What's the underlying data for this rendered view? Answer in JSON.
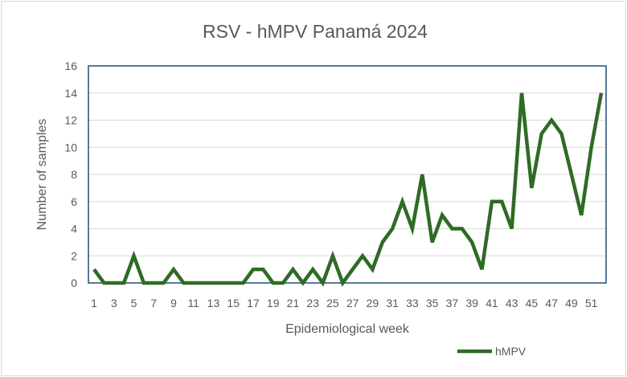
{
  "chart_data": {
    "type": "line",
    "title": "RSV - hMPV Panamá 2024",
    "xlabel": "Epidemiological week",
    "ylabel": "Number of samples",
    "ylim": [
      0,
      16
    ],
    "yticks": [
      "0",
      "2",
      "4",
      "6",
      "8",
      "10",
      "12",
      "14",
      "16"
    ],
    "x": [
      1,
      2,
      3,
      4,
      5,
      6,
      7,
      8,
      9,
      10,
      11,
      12,
      13,
      14,
      15,
      16,
      17,
      18,
      19,
      20,
      21,
      22,
      23,
      24,
      25,
      26,
      27,
      28,
      29,
      30,
      31,
      32,
      33,
      34,
      35,
      36,
      37,
      38,
      39,
      40,
      41,
      42,
      43,
      44,
      45,
      46,
      47,
      48,
      49,
      50,
      51,
      52
    ],
    "xtick_labels": [
      "1",
      "3",
      "5",
      "7",
      "9",
      "11",
      "13",
      "15",
      "17",
      "19",
      "21",
      "23",
      "25",
      "27",
      "29",
      "31",
      "33",
      "35",
      "37",
      "39",
      "41",
      "43",
      "45",
      "47",
      "49",
      "51"
    ],
    "series": [
      {
        "name": "hMPV",
        "color": "#2e6b24",
        "values": [
          1,
          0,
          0,
          0,
          2,
          0,
          0,
          0,
          1,
          0,
          0,
          0,
          0,
          0,
          0,
          0,
          1,
          1,
          0,
          0,
          1,
          0,
          1,
          0,
          2,
          0,
          1,
          2,
          1,
          3,
          4,
          6,
          4,
          8,
          3,
          5,
          4,
          4,
          3,
          1,
          6,
          6,
          4,
          14,
          7,
          11,
          12,
          11,
          8,
          5,
          10,
          14
        ]
      }
    ],
    "grid": true,
    "legend": "bottom-right",
    "plot_border_color": "#1f4e79"
  }
}
